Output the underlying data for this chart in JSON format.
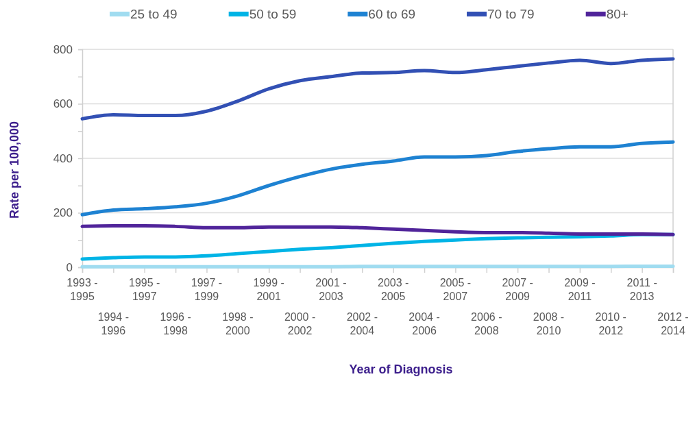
{
  "chart_data": {
    "type": "line",
    "xlabel": "Year of Diagnosis",
    "ylabel": "Rate per 100,000",
    "categories": [
      "1993 - 1995",
      "1994 - 1996",
      "1995 - 1997",
      "1996 - 1998",
      "1997 - 1999",
      "1998 - 2000",
      "1999 - 2001",
      "2000 - 2002",
      "2001 - 2003",
      "2002 - 2004",
      "2003 - 2005",
      "2004 - 2006",
      "2005 - 2007",
      "2006 - 2008",
      "2007 - 2009",
      "2008 - 2010",
      "2009 - 2011",
      "2010 - 2012",
      "2011 - 2013",
      "2012 - 2014"
    ],
    "series": [
      {
        "name": "25 to 49",
        "color": "#a0dcf0",
        "values": [
          2,
          2,
          2,
          2,
          2,
          2,
          2,
          2,
          2,
          3,
          3,
          3,
          3,
          3,
          3,
          3,
          3,
          3,
          4,
          4
        ]
      },
      {
        "name": "50 to 59",
        "color": "#00b4e6",
        "values": [
          30,
          35,
          38,
          38,
          42,
          50,
          58,
          66,
          72,
          80,
          88,
          95,
          100,
          105,
          108,
          110,
          112,
          115,
          120,
          120
        ]
      },
      {
        "name": "60 to 69",
        "color": "#1e82d2",
        "values": [
          193,
          210,
          215,
          222,
          235,
          262,
          300,
          333,
          360,
          378,
          390,
          405,
          405,
          410,
          425,
          435,
          442,
          442,
          455,
          460
        ]
      },
      {
        "name": "70 to 79",
        "color": "#3250b4",
        "values": [
          545,
          560,
          557,
          557,
          573,
          610,
          655,
          685,
          700,
          713,
          715,
          722,
          715,
          725,
          738,
          750,
          760,
          748,
          760,
          765
        ]
      },
      {
        "name": "80+",
        "color": "#50249a",
        "values": [
          150,
          152,
          152,
          150,
          145,
          145,
          148,
          148,
          148,
          145,
          140,
          135,
          130,
          127,
          127,
          125,
          122,
          122,
          122,
          120
        ]
      }
    ],
    "ylim": [
      0,
      800
    ],
    "yticks": [
      0,
      {
        "value": 100,
        "label": null
      },
      200,
      {
        "value": 300,
        "label": null
      },
      400,
      {
        "value": 500,
        "label": null
      },
      600,
      {
        "value": 700,
        "label": null
      },
      800
    ],
    "grid": "y",
    "legend": "top",
    "marker": "none",
    "line_style": "solid"
  }
}
